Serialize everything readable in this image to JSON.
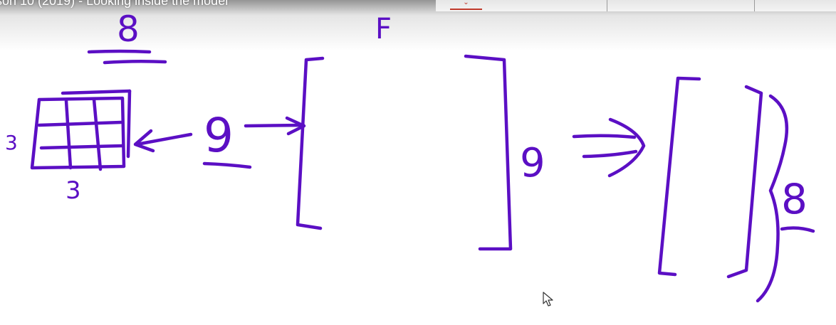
{
  "window": {
    "title": "son 10 (2019) - Looking inside the model"
  },
  "toolbar": {
    "dropdown_glyph": "⌄",
    "accent_color": "#c0392b"
  },
  "whiteboard": {
    "ink_color": "#5b0fc4",
    "annotations": {
      "top_left_8": "8",
      "top_center_f": "F",
      "grid_left_3": "3",
      "grid_bottom_3": "3",
      "arrow_9": "9",
      "bracket_9": "9",
      "brace_8": "8"
    }
  },
  "cursor": {
    "icon": "mouse-pointer-icon"
  }
}
